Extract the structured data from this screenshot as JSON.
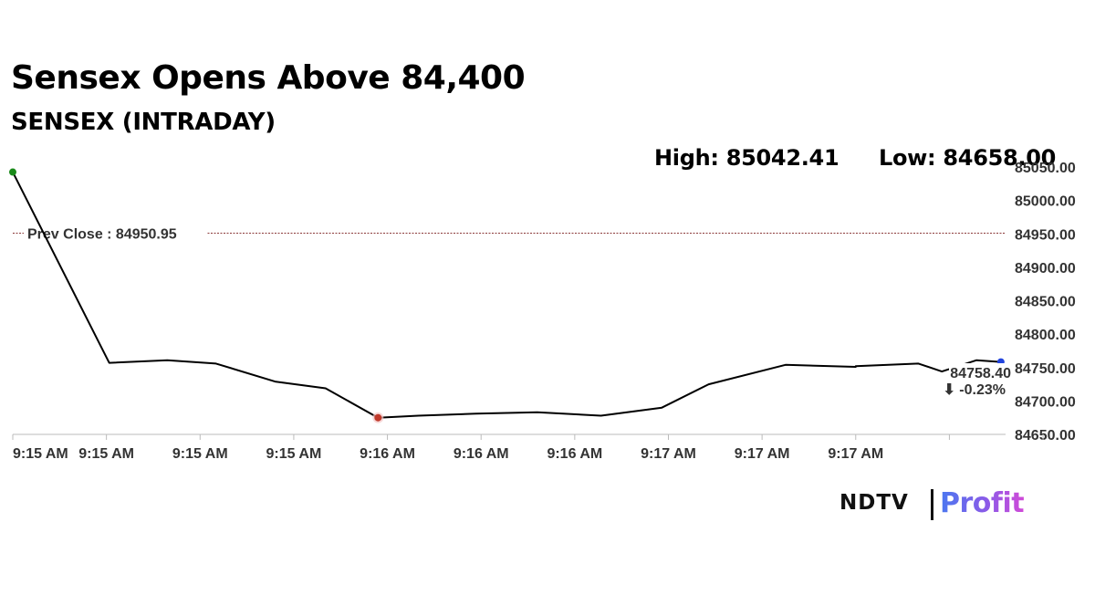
{
  "header": {
    "title": "Sensex Opens Above 84,400",
    "subtitle": "SENSEX (INTRADAY)",
    "high_label": "High: 85042.41",
    "low_label": "Low: 84658.00"
  },
  "brand": {
    "ndtv": "NDTV",
    "profit": "Profit"
  },
  "colors": {
    "line": "#000000",
    "high_marker": "#1a8a1a",
    "low_marker": "#c0392b",
    "last_marker": "#2244dd",
    "prev_close_line": "#8b3a3a",
    "change_negative": "#cc0000"
  },
  "chart_data": {
    "type": "line",
    "title": "Sensex Opens Above 84,400",
    "subtitle": "SENSEX (INTRADAY)",
    "x": [
      "9:15 AM",
      "9:15 AM",
      "9:15 AM",
      "9:15 AM",
      "9:15 AM",
      "9:15 AM",
      "9:15 AM",
      "9:16 AM",
      "9:16 AM",
      "9:16 AM",
      "9:16 AM",
      "9:16 AM",
      "9:17 AM",
      "9:17 AM",
      "9:17 AM",
      "9:17 AM",
      "9:17 AM",
      "9:17 AM",
      "9:17 AM",
      "9:17 AM"
    ],
    "x_index": [
      0,
      1.03,
      1.65,
      2.17,
      2.8,
      3.34,
      3.9,
      4.33,
      4.95,
      5.6,
      6.28,
      6.93,
      7.43,
      8.25,
      9.0,
      9.0,
      9.67,
      9.92,
      10.29,
      10.55
    ],
    "series": [
      {
        "values": [
          85042.41,
          84757,
          84761,
          84756,
          84729,
          84719,
          84675,
          84678,
          84681,
          84683,
          84678,
          84690,
          84725,
          84754,
          84751,
          84752,
          84756,
          84744,
          84761,
          84758.4
        ]
      }
    ],
    "x_tick_labels": [
      "9:15 AM",
      "9:15 AM",
      "9:15 AM",
      "9:15 AM",
      "9:16 AM",
      "9:16 AM",
      "9:16 AM",
      "9:17 AM",
      "9:17 AM",
      "9:17 AM"
    ],
    "y_ticks": [
      84650,
      84700,
      84750,
      84800,
      84850,
      84900,
      84950,
      85000,
      85050
    ],
    "y_tick_labels": [
      "84650.00",
      "84700.00",
      "84750.00",
      "84800.00",
      "84850.00",
      "84900.00",
      "84950.00",
      "85000.00",
      "85050.00"
    ],
    "ylim": [
      84650,
      85050
    ],
    "x_range": [
      0,
      10.6
    ],
    "prev_close": {
      "value": 84950.95,
      "label": "Prev Close : 84950.95"
    },
    "last": {
      "value_label": "84758.40",
      "change_label": "⬇ -0.23%"
    },
    "high_index": 0,
    "low_index": 6,
    "grid": false,
    "legend": "none"
  }
}
